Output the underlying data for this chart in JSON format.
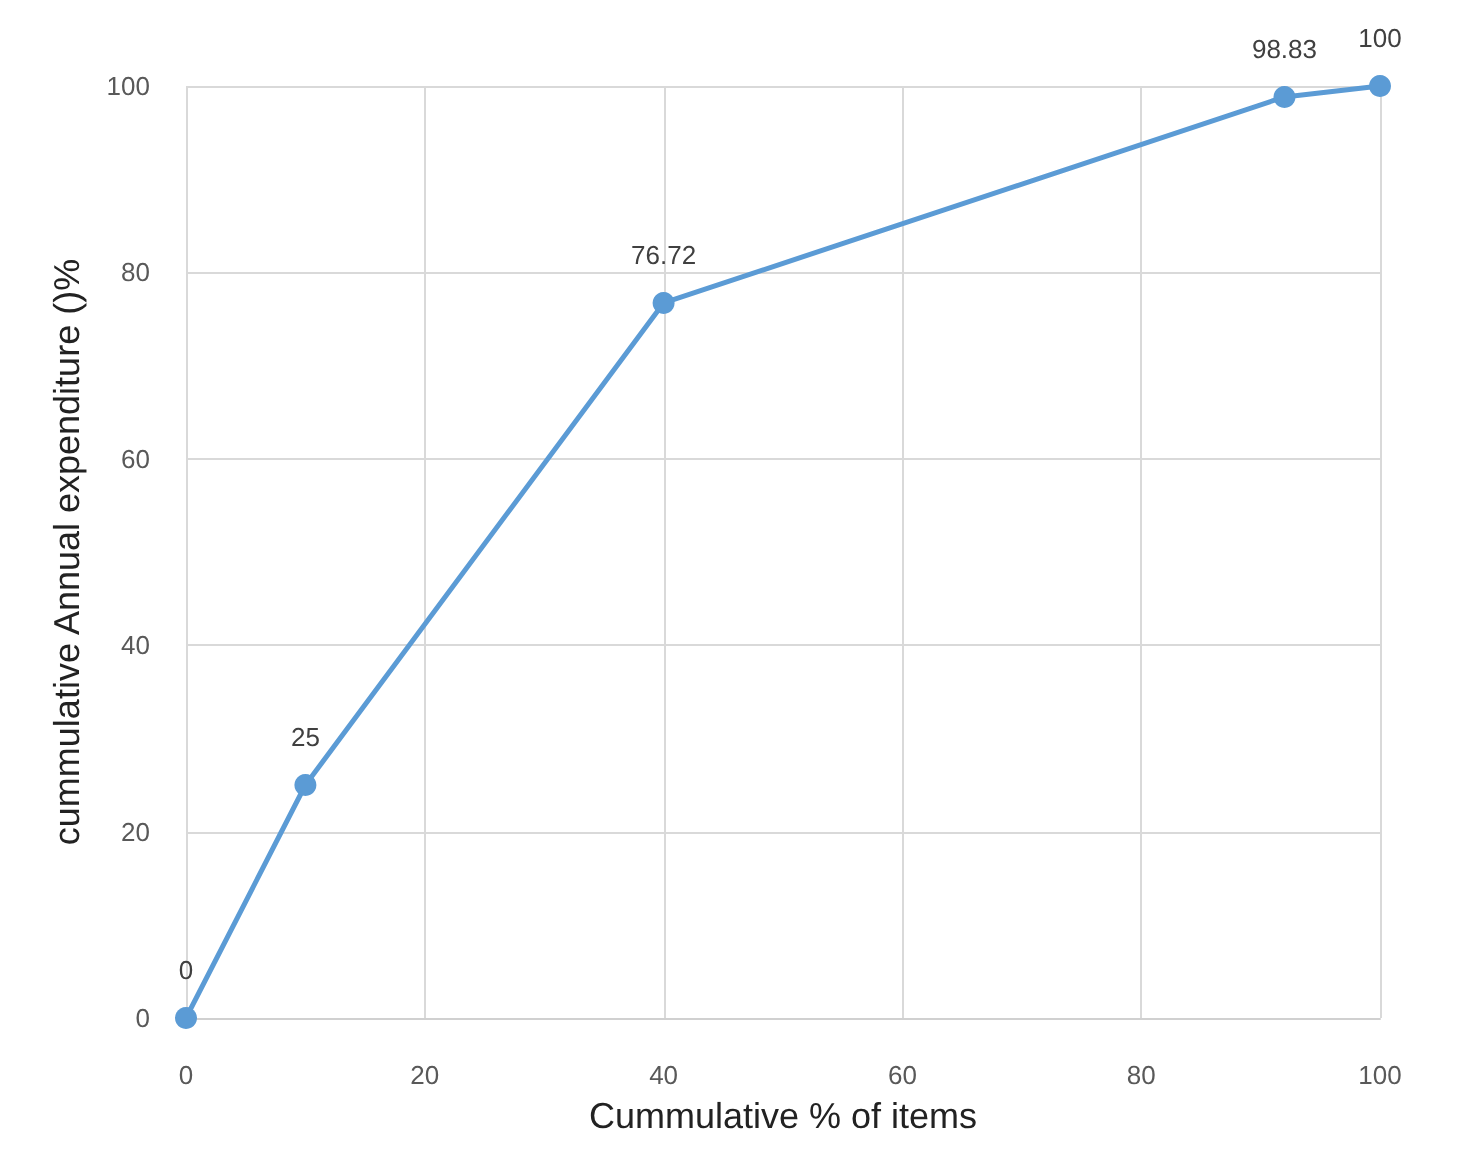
{
  "chart_data": {
    "type": "line",
    "xlabel": "Cummulative % of items",
    "ylabel": "cummulative Annual expenditure ()%",
    "x": [
      0,
      10,
      40,
      92,
      100
    ],
    "series": [
      {
        "color": "#5b9bd5",
        "values": [
          0,
          25,
          76.72,
          98.83,
          100
        ]
      }
    ],
    "xlim": [
      0,
      100
    ],
    "xticks": [
      0,
      20,
      40,
      60,
      80,
      100
    ],
    "ylim": [
      0,
      100
    ],
    "yticks": [
      0,
      20,
      40,
      60,
      80,
      100
    ],
    "grid": true,
    "data_labels": true,
    "marker": "circle",
    "line_style": "solid"
  }
}
